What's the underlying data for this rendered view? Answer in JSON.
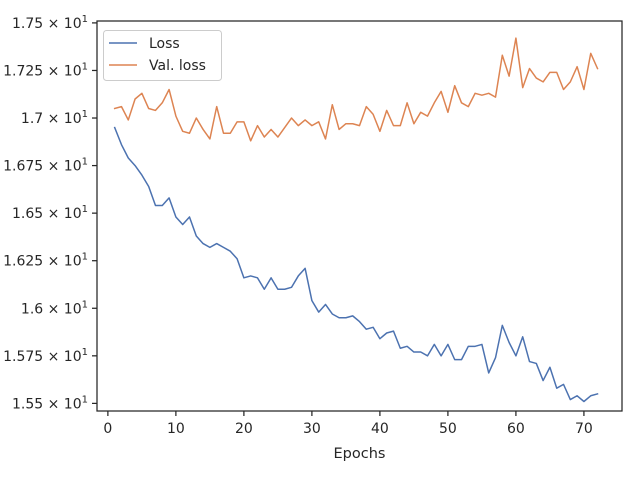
{
  "chart_data": {
    "type": "line",
    "title": "",
    "xlabel": "Epochs",
    "ylabel": "",
    "xlim": [
      -1.6,
      75.6
    ],
    "ylim": [
      15.46,
      17.51
    ],
    "grid": false,
    "legend_position": "top-left",
    "x_ticks": [
      {
        "value": 0,
        "label": "0"
      },
      {
        "value": 10,
        "label": "10"
      },
      {
        "value": 20,
        "label": "20"
      },
      {
        "value": 30,
        "label": "30"
      },
      {
        "value": 40,
        "label": "40"
      },
      {
        "value": 50,
        "label": "50"
      },
      {
        "value": 60,
        "label": "60"
      },
      {
        "value": 70,
        "label": "70"
      }
    ],
    "y_ticks": [
      {
        "value": 15.5,
        "mantissa": "1.55",
        "label": "1.55 × 10^1"
      },
      {
        "value": 15.75,
        "mantissa": "1.575",
        "label": "1.575 × 10^1"
      },
      {
        "value": 16.0,
        "mantissa": "1.6",
        "label": "1.6 × 10^1"
      },
      {
        "value": 16.25,
        "mantissa": "1.625",
        "label": "1.625 × 10^1"
      },
      {
        "value": 16.5,
        "mantissa": "1.65",
        "label": "1.65 × 10^1"
      },
      {
        "value": 16.75,
        "mantissa": "1.675",
        "label": "1.675 × 10^1"
      },
      {
        "value": 17.0,
        "mantissa": "1.7",
        "label": "1.7 × 10^1"
      },
      {
        "value": 17.25,
        "mantissa": "1.725",
        "label": "1.725 × 10^1"
      },
      {
        "value": 17.5,
        "mantissa": "1.75",
        "label": "1.75 × 10^1"
      }
    ],
    "series": [
      {
        "name": "Loss",
        "color": "#4c72b0",
        "x": [
          1,
          2,
          3,
          4,
          5,
          6,
          7,
          8,
          9,
          10,
          11,
          12,
          13,
          14,
          15,
          16,
          17,
          18,
          19,
          20,
          21,
          22,
          23,
          24,
          25,
          26,
          27,
          28,
          29,
          30,
          31,
          32,
          33,
          34,
          35,
          36,
          37,
          38,
          39,
          40,
          41,
          42,
          43,
          44,
          45,
          46,
          47,
          48,
          49,
          50,
          51,
          52,
          53,
          54,
          55,
          56,
          57,
          58,
          59,
          60,
          61,
          62,
          63,
          64,
          65,
          66,
          67,
          68,
          69,
          70,
          71,
          72
        ],
        "y": [
          16.95,
          16.86,
          16.79,
          16.75,
          16.7,
          16.64,
          16.54,
          16.54,
          16.58,
          16.48,
          16.44,
          16.48,
          16.38,
          16.34,
          16.32,
          16.34,
          16.32,
          16.3,
          16.26,
          16.16,
          16.17,
          16.16,
          16.1,
          16.16,
          16.1,
          16.1,
          16.11,
          16.17,
          16.21,
          16.04,
          15.98,
          16.02,
          15.97,
          15.95,
          15.95,
          15.96,
          15.93,
          15.89,
          15.9,
          15.84,
          15.87,
          15.88,
          15.79,
          15.8,
          15.77,
          15.77,
          15.75,
          15.81,
          15.75,
          15.81,
          15.73,
          15.73,
          15.8,
          15.8,
          15.81,
          15.66,
          15.74,
          15.91,
          15.82,
          15.75,
          15.85,
          15.72,
          15.71,
          15.62,
          15.69,
          15.58,
          15.6,
          15.52,
          15.54,
          15.51,
          15.54,
          15.55
        ]
      },
      {
        "name": "Val. loss",
        "color": "#dd8452",
        "x": [
          1,
          2,
          3,
          4,
          5,
          6,
          7,
          8,
          9,
          10,
          11,
          12,
          13,
          14,
          15,
          16,
          17,
          18,
          19,
          20,
          21,
          22,
          23,
          24,
          25,
          26,
          27,
          28,
          29,
          30,
          31,
          32,
          33,
          34,
          35,
          36,
          37,
          38,
          39,
          40,
          41,
          42,
          43,
          44,
          45,
          46,
          47,
          48,
          49,
          50,
          51,
          52,
          53,
          54,
          55,
          56,
          57,
          58,
          59,
          60,
          61,
          62,
          63,
          64,
          65,
          66,
          67,
          68,
          69,
          70,
          71,
          72
        ],
        "y": [
          17.05,
          17.06,
          16.99,
          17.1,
          17.13,
          17.05,
          17.04,
          17.08,
          17.15,
          17.01,
          16.93,
          16.92,
          17.0,
          16.94,
          16.89,
          17.06,
          16.92,
          16.92,
          16.98,
          16.98,
          16.88,
          16.96,
          16.9,
          16.94,
          16.9,
          16.95,
          17.0,
          16.96,
          16.99,
          16.96,
          16.98,
          16.89,
          17.07,
          16.94,
          16.97,
          16.97,
          16.96,
          17.06,
          17.02,
          16.93,
          17.04,
          16.96,
          16.96,
          17.08,
          16.97,
          17.03,
          17.01,
          17.08,
          17.14,
          17.03,
          17.17,
          17.08,
          17.06,
          17.13,
          17.12,
          17.13,
          17.11,
          17.33,
          17.22,
          17.42,
          17.16,
          17.26,
          17.21,
          17.19,
          17.24,
          17.24,
          17.15,
          17.19,
          17.27,
          17.15,
          17.34,
          17.26
        ]
      }
    ]
  }
}
